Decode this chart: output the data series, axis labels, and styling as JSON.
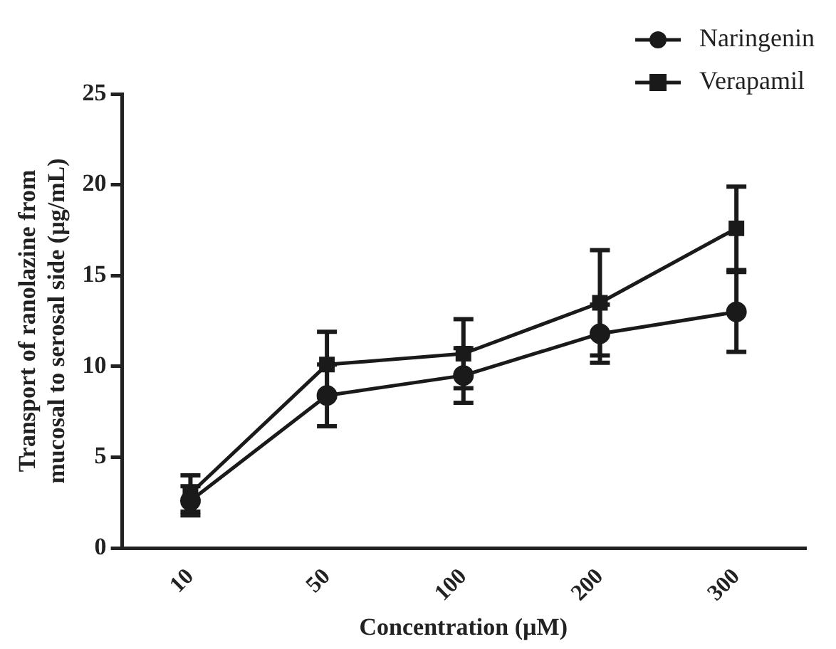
{
  "chart_data": {
    "type": "line",
    "xlabel": "Concentration (µM)",
    "ylabel": "Transport of ranolazine from\nmucosal to serosal side (µg/mL)",
    "categories": [
      "10",
      "50",
      "100",
      "200",
      "300"
    ],
    "series": [
      {
        "name": "Naringenin",
        "color": "#1a1a1a",
        "marker": "circle",
        "values": [
          2.6,
          8.4,
          9.5,
          11.8,
          13.0
        ],
        "errors": [
          0.8,
          1.7,
          1.5,
          1.6,
          2.2
        ]
      },
      {
        "name": "Verapamil",
        "color": "#1a1a1a",
        "marker": "square",
        "values": [
          3.0,
          10.1,
          10.7,
          13.5,
          17.6
        ],
        "errors": [
          1.0,
          1.8,
          1.9,
          2.9,
          2.3
        ]
      }
    ],
    "ylim": [
      0,
      25
    ],
    "yticks": [
      0,
      5,
      10,
      15,
      20,
      25
    ],
    "grid": false,
    "legend": "top right",
    "line_style": "solid"
  }
}
